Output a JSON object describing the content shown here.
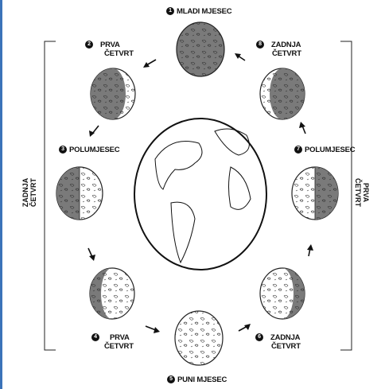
{
  "phases": [
    {
      "num": "1",
      "name": "MLADI MJESEC"
    },
    {
      "num": "2",
      "name": "PRVA",
      "name2": "ČETVRT"
    },
    {
      "num": "3",
      "name": "POLUMJESEC"
    },
    {
      "num": "4",
      "name": "PRVA",
      "name2": "ČETVRT"
    },
    {
      "num": "5",
      "name": "PUNI MJESEC"
    },
    {
      "num": "6",
      "name": "ZADNJA",
      "name2": "ČETVRT"
    },
    {
      "num": "7",
      "name": "POLUMJESEC"
    },
    {
      "num": "8",
      "name": "ZADNJA",
      "name2": "ČETVRT"
    }
  ],
  "side_labels": {
    "left": {
      "line1": "ZADNJA",
      "line2": "ČETVRT"
    },
    "right": {
      "line1": "PRVA",
      "line2": "ČETVRT"
    }
  },
  "colors": {
    "dark": "#7a7a7a",
    "light": "#ffffff",
    "stroke": "#222222",
    "edge": "#3b73b9"
  }
}
